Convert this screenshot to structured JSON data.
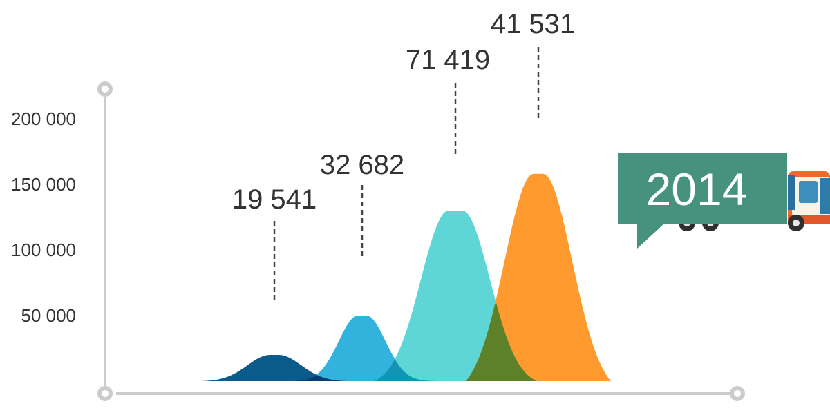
{
  "chart_data": {
    "type": "area",
    "y_axis": {
      "ticks": [
        50000,
        100000,
        150000,
        200000
      ],
      "tick_labels": [
        "50 000",
        "100 000",
        "150 000",
        "200 000"
      ],
      "ylim": [
        0,
        200000
      ]
    },
    "series": [
      {
        "value": 19541,
        "label": "19 541",
        "peak": 20000
      },
      {
        "value": 32682,
        "label": "32 682",
        "peak": 50000
      },
      {
        "value": 71419,
        "label": "71 419",
        "peak": 130000
      },
      {
        "value": 41531,
        "label": "41 531",
        "peak": 158000
      }
    ],
    "colors": [
      "#0b5a8c",
      "#31b3dd",
      "#5ed6d6",
      "#ff9a2e"
    ],
    "overlap_colors": [
      "#053e74",
      "#1294b4",
      "#5d8129"
    ],
    "axis_color": "#cccccc",
    "grid": false
  },
  "badge": {
    "year": "2014",
    "color": "#46927e"
  }
}
